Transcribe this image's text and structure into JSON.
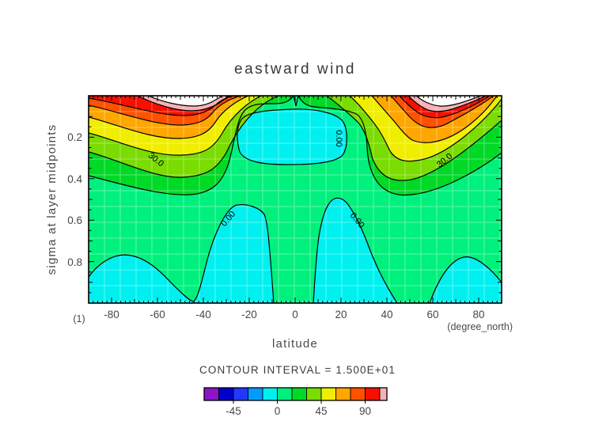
{
  "title": "eastward wind",
  "axes": {
    "x": {
      "label": "latitude",
      "unit": "(degree_north)",
      "ticks": [
        "-80",
        "-60",
        "-40",
        "-20",
        "0",
        "20",
        "40",
        "60",
        "80"
      ],
      "range": [
        -90,
        90
      ]
    },
    "y": {
      "label": "sigma at layer midpoints",
      "ticks": [
        "0.2",
        "0.4",
        "0.6",
        "0.8"
      ],
      "range": [
        0,
        1
      ]
    },
    "corner_label": "(1)"
  },
  "contour_labels": {
    "left_30": "30.0",
    "right_30": "30.0",
    "zero_top": "0.00",
    "zero_left": "0.00",
    "zero_right": "0.00"
  },
  "colorbar": {
    "caption": "CONTOUR INTERVAL = 1.500E+01",
    "ticks": [
      "-45",
      "0",
      "45",
      "90"
    ],
    "colors": [
      "#8c14c8",
      "#0000cd",
      "#2238ff",
      "#009dff",
      "#00f0f0",
      "#00f07d",
      "#00d926",
      "#7adc00",
      "#f0ee00",
      "#ffa600",
      "#ff5200",
      "#f51000",
      "#f7b0b6"
    ]
  },
  "palette": {
    "springgreen": "#00f07d",
    "cyan": "#00f0f0",
    "green": "#00d926",
    "chartreuse": "#7adc00",
    "yellow": "#f0ee00",
    "orange": "#ffa600",
    "orangered": "#ff5200",
    "red": "#f51000",
    "pink": "#f7b0b6",
    "white": "#ffffff"
  },
  "chart_data": {
    "type": "filled-contour",
    "title": "eastward wind",
    "xlabel": "latitude",
    "x_unit": "degree_north",
    "ylabel": "sigma at layer midpoints",
    "x_range": [
      -90,
      90
    ],
    "y_range": [
      0,
      1
    ],
    "y_axis_inverted_note": "sigma increases downward, ~0 at top to ~1 at bottom",
    "contour_interval": 15,
    "fill_levels": [
      -75,
      -60,
      -45,
      -30,
      -15,
      0,
      15,
      30,
      45,
      60,
      75,
      90,
      105,
      120
    ],
    "colorbar_range": [
      -75,
      120
    ],
    "labeled_contours": [
      {
        "value": 30.0,
        "approx_location": {
          "lat": -60,
          "sigma": 0.3
        }
      },
      {
        "value": 30.0,
        "approx_location": {
          "lat": 65,
          "sigma": 0.31
        }
      },
      {
        "value": 0.0,
        "approx_location": {
          "lat": 19,
          "sigma": 0.21
        }
      },
      {
        "value": 0.0,
        "approx_location": {
          "lat": -29,
          "sigma": 0.59
        }
      },
      {
        "value": 0.0,
        "approx_location": {
          "lat": 26,
          "sigma": 0.59
        }
      }
    ],
    "features": [
      {
        "name": "southern jet maximum",
        "lat": -48,
        "sigma": 0.04,
        "value": ">120 (beyond palette, shown white with pink 105-120 rim)"
      },
      {
        "name": "northern jet maximum",
        "lat": 62,
        "sigma": 0.04,
        "value": ">120 (beyond palette, shown white with pink 105-120 rim)"
      },
      {
        "name": "tropical upper-level easterlies",
        "lat_span": [
          -22,
          22
        ],
        "sigma_span": [
          0.09,
          0.33
        ],
        "value": "-15 to 0 (cyan)"
      },
      {
        "name": "surface easterlies south polar",
        "lat_span": [
          -90,
          -12
        ],
        "sigma_span": [
          0.75,
          1.0
        ],
        "value": "-15 to 0 (cyan)"
      },
      {
        "name": "surface easterlies tropics north",
        "lat_span": [
          8,
          45
        ],
        "sigma_span": [
          0.5,
          1.0
        ],
        "value": "-15 to 0 (cyan)"
      },
      {
        "name": "surface easterlies north polar",
        "lat_span": [
          48,
          90
        ],
        "sigma_span": [
          0.78,
          1.0
        ],
        "value": "-15 to 0 (cyan)"
      },
      {
        "name": "background westerlies",
        "value": "0 to 15 over most of domain (spring green)"
      }
    ]
  }
}
